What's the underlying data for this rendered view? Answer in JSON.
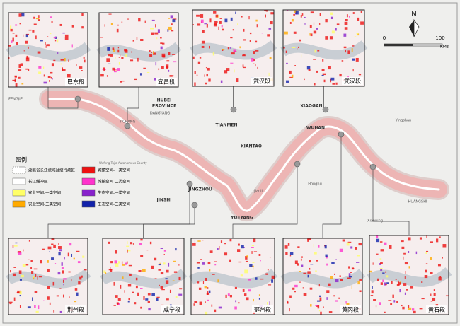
{
  "north": "N",
  "scale": {
    "ticks": [
      "0",
      "100"
    ],
    "unit": "KMs"
  },
  "insets": [
    {
      "label": "巴东段"
    },
    {
      "label": "宜昌段"
    },
    {
      "label": "武汉段"
    },
    {
      "label": "武汉段"
    },
    {
      "label": "荆州段"
    },
    {
      "label": "咸宁段"
    },
    {
      "label": "鄂州段"
    },
    {
      "label": "黄冈段"
    },
    {
      "label": "黄石段"
    }
  ],
  "map_labels": [
    "HUBEI",
    "PROVINCE",
    "TIANMEN",
    "XIANTAO",
    "XIAOGAN",
    "WUHAN",
    "JINGZHOU",
    "YUEYANG",
    "JINSHI",
    "FENGJIE",
    "YICHANG",
    "DANGYANG",
    "HUANGSHI",
    "Jianli",
    "Honghu",
    "Xianning",
    "Yingshan"
  ],
  "legend": {
    "title": "图例",
    "note": "Wufeng Tujia Autonomous County",
    "items": [
      {
        "label": "湖北省长江流域县级行政区",
        "color": "#ffffff"
      },
      {
        "label": "长江缓冲区",
        "color": "#ffffff"
      },
      {
        "label": "农业空间-一类空间",
        "color": "#ffff66"
      },
      {
        "label": "农业空间-二类空间",
        "color": "#ffaa00"
      },
      {
        "label": "城镇空间-一类空间",
        "color": "#ee1111"
      },
      {
        "label": "城镇空间-二类空间",
        "color": "#ff33cc"
      },
      {
        "label": "生态空间-一类空间",
        "color": "#8822cc"
      },
      {
        "label": "生态空间-二类空间",
        "color": "#1122aa"
      }
    ]
  }
}
